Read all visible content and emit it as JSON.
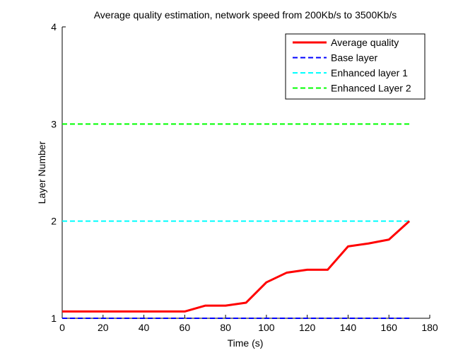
{
  "chart_data": {
    "type": "line",
    "title": "Average quality estimation, network speed from 200Kb/s to 3500Kb/s",
    "xlabel": "Time (s)",
    "ylabel": "Layer Number",
    "xlim": [
      0,
      180
    ],
    "ylim": [
      1,
      4
    ],
    "xticks": [
      0,
      20,
      40,
      60,
      80,
      100,
      120,
      140,
      160,
      180
    ],
    "yticks": [
      1,
      2,
      3,
      4
    ],
    "grid": false,
    "legend_position": "top-right",
    "series": [
      {
        "name": "Average quality",
        "color": "#ff0000",
        "style": "solid",
        "x": [
          0,
          60,
          70,
          80,
          90,
          100,
          110,
          120,
          130,
          140,
          150,
          160,
          170
        ],
        "y": [
          1.07,
          1.07,
          1.13,
          1.13,
          1.16,
          1.37,
          1.47,
          1.5,
          1.5,
          1.74,
          1.77,
          1.81,
          2.0
        ]
      },
      {
        "name": "Base layer",
        "color": "#0000ff",
        "style": "dashed",
        "x": [
          0,
          170
        ],
        "y": [
          1,
          1
        ]
      },
      {
        "name": "Enhanced layer 1",
        "color": "#00ffff",
        "style": "dashed",
        "x": [
          0,
          170
        ],
        "y": [
          2,
          2
        ]
      },
      {
        "name": "Enhanced Layer 2",
        "color": "#00ff00",
        "style": "dashed",
        "x": [
          0,
          170
        ],
        "y": [
          3,
          3
        ]
      }
    ]
  }
}
